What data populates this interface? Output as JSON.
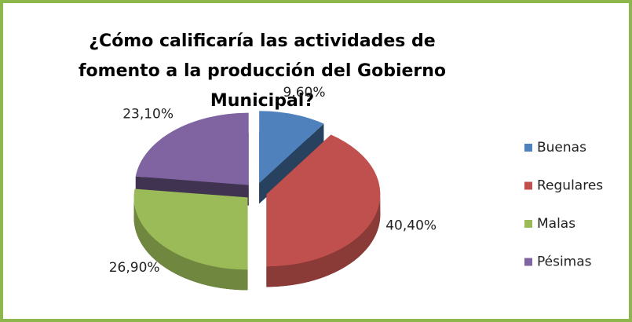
{
  "chart_data": {
    "type": "pie",
    "title": "¿Cómo calificaría las actividades de fomento a la producción del Gobierno Municipal?",
    "categories": [
      "Buenas",
      "Regulares",
      "Malas",
      "Pésimas"
    ],
    "values": [
      9.6,
      40.4,
      26.9,
      23.1
    ],
    "value_labels": [
      "9,60%",
      "40,40%",
      "26,90%",
      "23,10%"
    ],
    "colors": [
      "#4f81bd",
      "#c0504d",
      "#9bbb59",
      "#8064a2"
    ],
    "legend": "right"
  }
}
